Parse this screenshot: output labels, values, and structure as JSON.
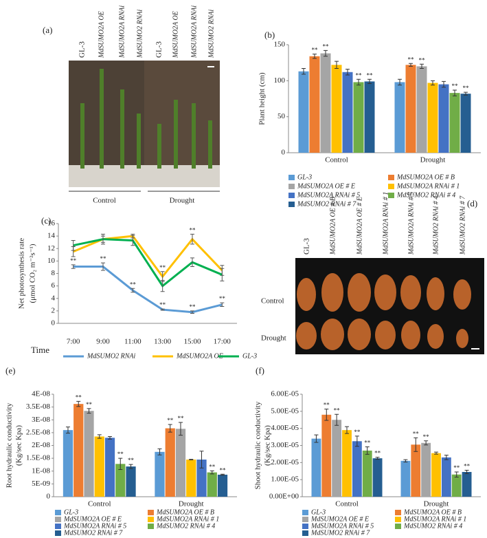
{
  "photos": [
    {
      "panel_label": "(a)",
      "column_labels": [
        "GL-3",
        "MdSUMO2A OE",
        "MdSUMO2A RNAi",
        "MdSUMO2 RNAi",
        "GL-3",
        "MdSUMO2A OE",
        "MdSUMO2A RNAi",
        "MdSUMO2 RNAi"
      ],
      "group_labels": [
        "Control",
        "Drought"
      ]
    },
    {
      "panel_label": "(d)",
      "column_labels": [
        "GL-3",
        "MdSUMO2A OE # B",
        "MdSUMO2A OE # E",
        "MdSUMO2A RNAi # 1",
        "MdSUMO2A RNAi # 5",
        "MdSUMO2 RNAi # 4",
        "MdSUMO2 RNAi # 7"
      ],
      "row_labels": [
        "Control",
        "Drought"
      ]
    }
  ],
  "chart_data": [
    {
      "type": "bar",
      "panel_label": "(b)",
      "y_label": [
        "Plant height (cm)"
      ],
      "categories": [
        "Control",
        "Drought"
      ],
      "ylim": [
        0,
        150
      ],
      "yticks": [
        0,
        50,
        100,
        150
      ],
      "series": [
        {
          "name": "GL-3",
          "color": "#5b9bd5",
          "values": [
            113,
            98
          ],
          "errors": [
            4,
            4
          ],
          "significance": [
            null,
            null
          ]
        },
        {
          "name": "MdSUMO2A OE # B",
          "color": "#ed7d31",
          "values": [
            134,
            122
          ],
          "errors": [
            3,
            2
          ],
          "significance": [
            "**",
            "**"
          ]
        },
        {
          "name": "MdSUMO2A OE # E",
          "color": "#a5a5a5",
          "values": [
            138,
            120
          ],
          "errors": [
            4,
            3
          ],
          "significance": [
            "**",
            "**"
          ]
        },
        {
          "name": "MdSUMO2A RNAi # 1",
          "color": "#ffc000",
          "values": [
            122,
            97
          ],
          "errors": [
            5,
            3
          ],
          "significance": [
            null,
            null
          ]
        },
        {
          "name": "MdSUMO2A RNAi # 5",
          "color": "#4472c4",
          "values": [
            112,
            95
          ],
          "errors": [
            4,
            4
          ],
          "significance": [
            null,
            null
          ]
        },
        {
          "name": "MdSUMO2 RNAi # 4",
          "color": "#70ad47",
          "values": [
            98,
            83
          ],
          "errors": [
            4,
            4
          ],
          "significance": [
            "**",
            "**"
          ]
        },
        {
          "name": "MdSUMO2 RNAi # 7",
          "color": "#255e91",
          "values": [
            99,
            82
          ],
          "errors": [
            3,
            2
          ],
          "significance": [
            "**",
            "**"
          ]
        }
      ]
    },
    {
      "type": "line",
      "panel_label": "(c)",
      "y_label": [
        "Net photosynthesis rate",
        "(μmol CO₂ m⁻²s⁻¹)"
      ],
      "x_label": "Time",
      "categories": [
        "7:00",
        "9:00",
        "11:00",
        "13:00",
        "15:00",
        "17:00"
      ],
      "ylim": [
        0,
        16
      ],
      "yticks": [
        0,
        2,
        4,
        6,
        8,
        10,
        12,
        14,
        16
      ],
      "series": [
        {
          "name": "MdSUMO2 RNAi",
          "color": "#5b9bd5",
          "values": [
            9.1,
            9.1,
            5.3,
            2.2,
            1.8,
            3.0
          ],
          "errors": [
            0.3,
            0.6,
            0.3,
            0.1,
            0.2,
            0.3
          ],
          "significance": [
            "**",
            "**",
            "**",
            "**",
            "**",
            "**"
          ]
        },
        {
          "name": "MdSUMO2A OE",
          "color": "#ffc000",
          "values": [
            11.5,
            13.5,
            14.0,
            7.5,
            13.5,
            8.5
          ],
          "errors": [
            0.8,
            0.5,
            0.3,
            0.8,
            0.8,
            0.8
          ],
          "significance": [
            null,
            null,
            null,
            "**",
            "**",
            null
          ]
        },
        {
          "name": "GL-3",
          "color": "#00b050",
          "values": [
            12.5,
            13.5,
            13.3,
            6.0,
            9.8,
            7.8
          ],
          "errors": [
            0.8,
            0.8,
            0.8,
            0.9,
            0.7,
            1.0
          ],
          "significance": [
            null,
            null,
            null,
            null,
            null,
            null
          ]
        }
      ]
    },
    {
      "type": "bar",
      "panel_label": "(e)",
      "y_label": [
        "Root hydraulic conductivity",
        "(Kg/sec Kpa)"
      ],
      "categories": [
        "Control",
        "Drought"
      ],
      "ylim": [
        0,
        4e-08
      ],
      "yticks": [
        0,
        {
          "value": 5e-09,
          "label": "5E-09"
        },
        {
          "value": 1e-08,
          "label": "1E-08"
        },
        {
          "value": 1.5e-08,
          "label": "1.5E-08"
        },
        {
          "value": 2e-08,
          "label": "2E-08"
        },
        {
          "value": 2.5e-08,
          "label": "2.5E-08"
        },
        {
          "value": 3e-08,
          "label": "3E-08"
        },
        {
          "value": 3.5e-08,
          "label": "3.5E-08"
        },
        {
          "value": 4e-08,
          "label": "4E-08"
        }
      ],
      "series": [
        {
          "name": "GL-3",
          "color": "#5b9bd5",
          "values": [
            2.6e-08,
            1.75e-08
          ],
          "errors": [
            1.2e-09,
            1.2e-09
          ],
          "significance": [
            null,
            null
          ]
        },
        {
          "name": "MdSUMO2A OE # B",
          "color": "#ed7d31",
          "values": [
            3.62e-08,
            2.67e-08
          ],
          "errors": [
            1e-09,
            1.5e-09
          ],
          "significance": [
            "**",
            "**"
          ]
        },
        {
          "name": "MdSUMO2A OE # E",
          "color": "#a5a5a5",
          "values": [
            3.35e-08,
            2.65e-08
          ],
          "errors": [
            9e-10,
            2.5e-09
          ],
          "significance": [
            "**",
            "**"
          ]
        },
        {
          "name": "MdSUMO2A RNAi # 1",
          "color": "#ffc000",
          "values": [
            2.35e-08,
            1.45e-08
          ],
          "errors": [
            7e-10,
            1e-10
          ],
          "significance": [
            null,
            null
          ]
        },
        {
          "name": "MdSUMO2A RNAi # 5",
          "color": "#4472c4",
          "values": [
            2.3e-08,
            1.45e-08
          ],
          "errors": [
            5e-10,
            3.3e-09
          ],
          "significance": [
            null,
            null
          ]
        },
        {
          "name": "MdSUMO2 RNAi # 4",
          "color": "#70ad47",
          "values": [
            1.28e-08,
            9.5e-09
          ],
          "errors": [
            2.2e-09,
            6e-10
          ],
          "significance": [
            "**",
            "**"
          ]
        },
        {
          "name": "MdSUMO2 RNAi # 7",
          "color": "#255e91",
          "values": [
            1.18e-08,
            8.6e-09
          ],
          "errors": [
            8e-10,
            2e-10
          ],
          "significance": [
            "**",
            "**"
          ]
        }
      ]
    },
    {
      "type": "bar",
      "panel_label": "(f)",
      "y_label": [
        "Shoot hydraulic conductivity",
        "(Kg/sec Kpa)"
      ],
      "categories": [
        "Control",
        "Drought"
      ],
      "ylim": [
        0,
        6e-05
      ],
      "yticks": [
        {
          "value": 0,
          "label": "0.00E+00"
        },
        {
          "value": 1e-05,
          "label": "1.00E-05"
        },
        {
          "value": 2e-05,
          "label": "2.00E-05"
        },
        {
          "value": 3e-05,
          "label": "3.00E-05"
        },
        {
          "value": 4e-05,
          "label": "4.00E-05"
        },
        {
          "value": 5e-05,
          "label": "5.00E-05"
        },
        {
          "value": 6e-05,
          "label": "6.00E-05"
        }
      ],
      "series": [
        {
          "name": "GL-3",
          "color": "#5b9bd5",
          "values": [
            3.4e-05,
            2.1e-05
          ],
          "errors": [
            2.2e-06,
            7e-07
          ],
          "significance": [
            null,
            null
          ]
        },
        {
          "name": "MdSUMO2A OE # B",
          "color": "#ed7d31",
          "values": [
            4.8e-05,
            3.05e-05
          ],
          "errors": [
            3.3e-06,
            4e-06
          ],
          "significance": [
            "**",
            "**"
          ]
        },
        {
          "name": "MdSUMO2A OE # E",
          "color": "#a5a5a5",
          "values": [
            4.5e-05,
            3.15e-05
          ],
          "errors": [
            3.2e-06,
            1.2e-06
          ],
          "significance": [
            "**",
            "**"
          ]
        },
        {
          "name": "MdSUMO2A RNAi # 1",
          "color": "#ffc000",
          "values": [
            3.9e-05,
            2.55e-05
          ],
          "errors": [
            2e-06,
            6e-07
          ],
          "significance": [
            null,
            null
          ]
        },
        {
          "name": "MdSUMO2A RNAi # 5",
          "color": "#4472c4",
          "values": [
            3.25e-05,
            2.3e-05
          ],
          "errors": [
            3e-06,
            1.3e-06
          ],
          "significance": [
            "**",
            null
          ]
        },
        {
          "name": "MdSUMO2 RNAi # 4",
          "color": "#70ad47",
          "values": [
            2.7e-05,
            1.3e-05
          ],
          "errors": [
            2.2e-06,
            1.5e-06
          ],
          "significance": [
            "**",
            "**"
          ]
        },
        {
          "name": "MdSUMO2 RNAi # 7",
          "color": "#255e91",
          "values": [
            2.25e-05,
            1.45e-05
          ],
          "errors": [
            6e-07,
            1e-06
          ],
          "significance": [
            "**",
            "**"
          ]
        }
      ]
    }
  ]
}
